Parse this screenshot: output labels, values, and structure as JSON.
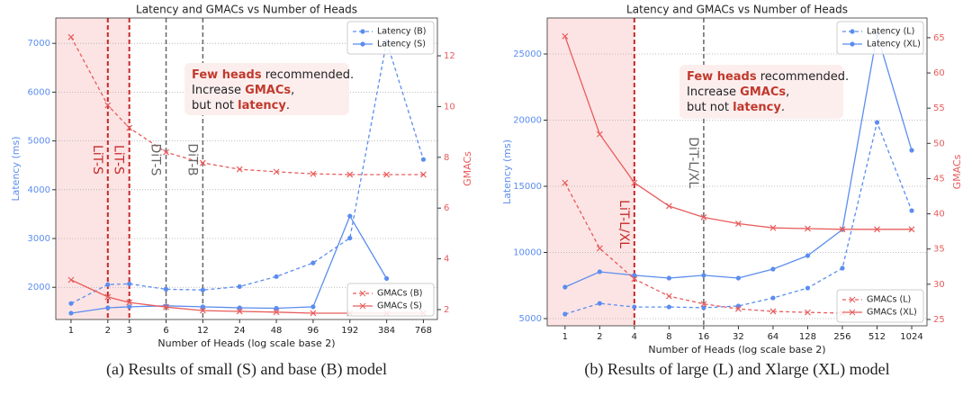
{
  "chart_data": [
    {
      "type": "line",
      "title": "Latency and GMACs vs Number of Heads",
      "caption": "(a) Results of small (S) and base (B) model",
      "xlabel": "Number of Heads (log scale base 2)",
      "ylabel": "Latency (ms)",
      "y2label": "GMACs",
      "xscale": "log",
      "xlim": [
        0.75,
        1000
      ],
      "xticks": [
        1,
        2,
        3,
        6,
        12,
        24,
        48,
        96,
        192,
        384,
        768
      ],
      "ylim": [
        1340,
        7520
      ],
      "yticks": [
        2000,
        3000,
        4000,
        5000,
        6000,
        7000
      ],
      "y2lim": [
        1.61,
        13.49
      ],
      "y2ticks": [
        2,
        4,
        6,
        8,
        10,
        12
      ],
      "grid": true,
      "legend": "upper right",
      "legend2": "lower right",
      "shade_to": 3,
      "shade_color": "#fde4e4",
      "vlines": [
        {
          "x": 2,
          "label": "LiT-S",
          "color": "#c62828"
        },
        {
          "x": 3,
          "label": "LiT-S",
          "color": "#c62828"
        },
        {
          "x": 6,
          "label": "DiT-S",
          "color": "#666666"
        },
        {
          "x": 12,
          "label": "DiT-B",
          "color": "#666666"
        }
      ],
      "annotation": {
        "color": "#c0392b",
        "lines": [
          [
            {
              "text": "Few heads",
              "bold": true
            },
            {
              "text": " recommended."
            }
          ],
          [
            {
              "text": "Increase "
            },
            {
              "text": "GMACs",
              "bold": true
            },
            {
              "text": ","
            }
          ],
          [
            {
              "text": "but not "
            },
            {
              "text": "latency",
              "bold": true
            },
            {
              "text": "."
            }
          ]
        ]
      },
      "x": [
        1,
        2,
        3,
        6,
        12,
        24,
        48,
        96,
        192,
        384,
        768
      ],
      "series": [
        {
          "name": "Latency (B)",
          "color": "#5b8def",
          "dash": true,
          "marker": "o",
          "values": [
            1668,
            2055,
            2070,
            1960,
            1945,
            2015,
            2220,
            2500,
            3010,
            7040,
            4620
          ]
        },
        {
          "name": "Latency (S)",
          "color": "#5b8def",
          "dash": false,
          "marker": "o",
          "values": [
            1470,
            1580,
            1600,
            1620,
            1600,
            1580,
            1570,
            1600,
            3460,
            2180,
            null
          ]
        },
        {
          "name": "GMACs (B)",
          "color": "#e85c5c",
          "dash": true,
          "marker": "x",
          "axis": "y2",
          "values": [
            12.74,
            10.05,
            9.16,
            8.2,
            7.78,
            7.53,
            7.43,
            7.35,
            7.32,
            7.32,
            7.32
          ]
        },
        {
          "name": "GMACs (S)",
          "color": "#e85c5c",
          "dash": false,
          "marker": "x",
          "axis": "y2",
          "values": [
            3.17,
            2.5,
            2.28,
            2.1,
            1.96,
            1.93,
            1.9,
            1.86,
            1.86,
            1.86,
            1.86
          ]
        }
      ]
    },
    {
      "type": "line",
      "title": "Latency and GMACs vs Number of Heads",
      "caption": "(b) Results of large (L) and Xlarge (XL) model",
      "xlabel": "Number of Heads (log scale base 2)",
      "ylabel": "Latency (ms)",
      "y2label": "GMACs",
      "xscale": "log",
      "xlim": [
        0.7,
        1390
      ],
      "xticks": [
        1,
        2,
        4,
        8,
        16,
        32,
        64,
        128,
        256,
        512,
        1024
      ],
      "ylim": [
        4456,
        27720
      ],
      "yticks": [
        5000,
        10000,
        15000,
        20000,
        25000
      ],
      "y2lim": [
        24.1,
        67.8
      ],
      "y2ticks": [
        25,
        30,
        35,
        40,
        45,
        50,
        55,
        60,
        65
      ],
      "grid": true,
      "legend": "upper right",
      "legend2": "lower right",
      "shade_to": 4,
      "shade_color": "#fde4e4",
      "vlines": [
        {
          "x": 4,
          "label": "LiT-L/XL",
          "color": "#c62828"
        },
        {
          "x": 16,
          "label": "DiT-L/XL",
          "color": "#666666"
        }
      ],
      "annotation": {
        "color": "#c0392b",
        "lines": [
          [
            {
              "text": "Few heads",
              "bold": true
            },
            {
              "text": " recommended."
            }
          ],
          [
            {
              "text": "Increase "
            },
            {
              "text": "GMACs",
              "bold": true
            },
            {
              "text": ","
            }
          ],
          [
            {
              "text": "but not "
            },
            {
              "text": "latency",
              "bold": true
            },
            {
              "text": "."
            }
          ]
        ]
      },
      "x": [
        1,
        2,
        4,
        8,
        16,
        32,
        64,
        128,
        256,
        512,
        1024
      ],
      "series": [
        {
          "name": "Latency (L)",
          "color": "#5b8def",
          "dash": true,
          "marker": "o",
          "values": [
            5340,
            6150,
            5880,
            5880,
            5820,
            5950,
            6560,
            7310,
            8810,
            19830,
            13160
          ]
        },
        {
          "name": "Latency (XL)",
          "color": "#5b8def",
          "dash": false,
          "marker": "o",
          "values": [
            7380,
            8540,
            8270,
            8060,
            8270,
            8060,
            8740,
            9760,
            11730,
            26500,
            17720
          ]
        },
        {
          "name": "GMACs (L)",
          "color": "#e85c5c",
          "dash": true,
          "marker": "x",
          "axis": "y2",
          "values": [
            44.4,
            35.1,
            30.75,
            28.3,
            27.2,
            26.5,
            26.15,
            26.0,
            25.9,
            null,
            null
          ]
        },
        {
          "name": "GMACs (XL)",
          "color": "#e85c5c",
          "dash": false,
          "marker": "x",
          "axis": "y2",
          "values": [
            65.2,
            51.3,
            44.4,
            41.1,
            39.5,
            38.6,
            38.0,
            37.9,
            37.8,
            37.8,
            37.8
          ]
        }
      ]
    }
  ]
}
